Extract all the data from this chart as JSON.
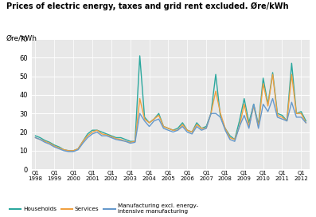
{
  "title": "Prices of electric energy, taxes and grid rent excluded. Øre/kWh",
  "ylabel": "Øre/kWh",
  "ylim": [
    0,
    70
  ],
  "yticks": [
    0,
    10,
    20,
    30,
    40,
    50,
    60,
    70
  ],
  "households": [
    18,
    17,
    15.5,
    14.5,
    13,
    12,
    10.5,
    10,
    10,
    11,
    15,
    19,
    21,
    21,
    20,
    19,
    18,
    17,
    17,
    16,
    15,
    15,
    61,
    28,
    25,
    27,
    30,
    23,
    22,
    21,
    22,
    25,
    21,
    20,
    25,
    22,
    23,
    30,
    51,
    28,
    22,
    18,
    16,
    26,
    38,
    25,
    35,
    24,
    49,
    35,
    52,
    30,
    29,
    26,
    57,
    30,
    31,
    26
  ],
  "services": [
    17,
    16,
    15,
    14,
    12.5,
    11.5,
    10.5,
    10,
    10,
    11,
    15,
    18,
    20,
    21,
    19,
    18.5,
    17.5,
    16.5,
    16,
    15,
    14.5,
    15,
    38,
    27,
    25,
    27,
    29,
    23,
    22,
    21,
    21,
    24,
    21,
    20,
    24,
    22,
    22,
    30,
    42,
    30,
    22,
    17,
    16,
    23,
    35,
    23,
    34,
    23,
    46,
    34,
    51,
    29,
    28,
    26,
    51,
    30,
    30,
    25
  ],
  "manufacturing": [
    17,
    16,
    14.5,
    13.5,
    12,
    11,
    10,
    9.5,
    9.5,
    10.5,
    14,
    17,
    19,
    20,
    18,
    18,
    17,
    16,
    15.5,
    15,
    14,
    14.5,
    30,
    26,
    23,
    26,
    27,
    22,
    21,
    20,
    21,
    23,
    20,
    19,
    23,
    21,
    22,
    30,
    30,
    28,
    21,
    16,
    15,
    23,
    29,
    22,
    35,
    22,
    35,
    31,
    38,
    28,
    27,
    26,
    36,
    28,
    28,
    25
  ],
  "color_households": "#2ba89e",
  "color_services": "#f0a040",
  "color_manufacturing": "#6699cc",
  "legend_labels": [
    "Households",
    "Services",
    "Manufacturing excl. energy-\nintensive manufacturing"
  ],
  "bg_color": "#e8e8e8",
  "linewidth": 1.0
}
